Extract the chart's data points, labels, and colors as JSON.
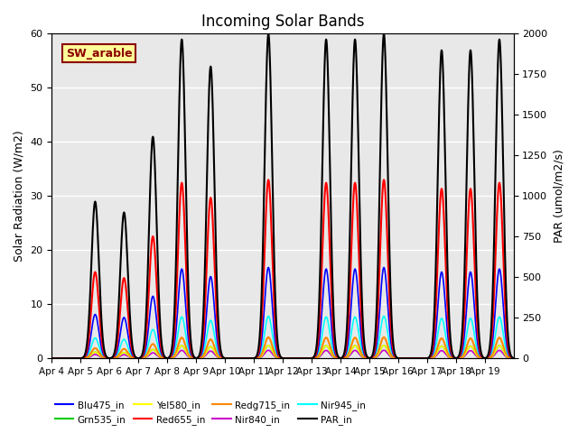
{
  "title": "Incoming Solar Bands",
  "ylabel_left": "Solar Radiation (W/m2)",
  "ylabel_right": "PAR (umol/m2/s)",
  "annotation_text": "SW_arable",
  "annotation_color": "#8B0000",
  "annotation_bg": "#FFFF99",
  "annotation_border": "#8B0000",
  "ylim_left": [
    0,
    60
  ],
  "ylim_right": [
    0,
    2000
  ],
  "background_color": "#E8E8E8",
  "series_colors": {
    "Blu475_in": "#0000FF",
    "Grn535_in": "#00CC00",
    "Yel580_in": "#FFFF00",
    "Red655_in": "#FF0000",
    "Redg715_in": "#FF8800",
    "Nir840_in": "#CC00CC",
    "Nir945_in": "#00FFFF",
    "PAR_in": "#000000"
  },
  "series_lw": {
    "Blu475_in": 1.2,
    "Grn535_in": 1.2,
    "Yel580_in": 1.2,
    "Red655_in": 1.5,
    "Redg715_in": 1.5,
    "Nir840_in": 1.2,
    "Nir945_in": 1.2,
    "PAR_in": 1.5
  },
  "par_scale": 33.3,
  "day_peaks_sw": [
    0.0,
    29.0,
    27.0,
    41.0,
    59.0,
    54.0,
    0.0,
    60.0,
    0.0,
    59.0,
    59.0,
    60.0,
    0.0,
    57.0,
    57.0,
    59.0
  ],
  "xtick_labels": [
    "Apr 4",
    "Apr 5",
    "Apr 6",
    "Apr 7",
    "Apr 8",
    "Apr 9",
    "Apr 10",
    "Apr 11",
    "Apr 12",
    "Apr 13",
    "Apr 14",
    "Apr 15",
    "Apr 16",
    "Apr 17",
    "Apr 18",
    "Apr 19"
  ],
  "band_fracs": {
    "Blu475_in": 0.28,
    "Grn535_in": 0.04,
    "Yel580_in": 0.04,
    "Red655_in": 0.55,
    "Redg715_in": 0.065,
    "Nir840_in": 0.025,
    "Nir945_in": 0.13
  },
  "grid_color": "#FFFFFF",
  "fig_bg": "#FFFFFF"
}
